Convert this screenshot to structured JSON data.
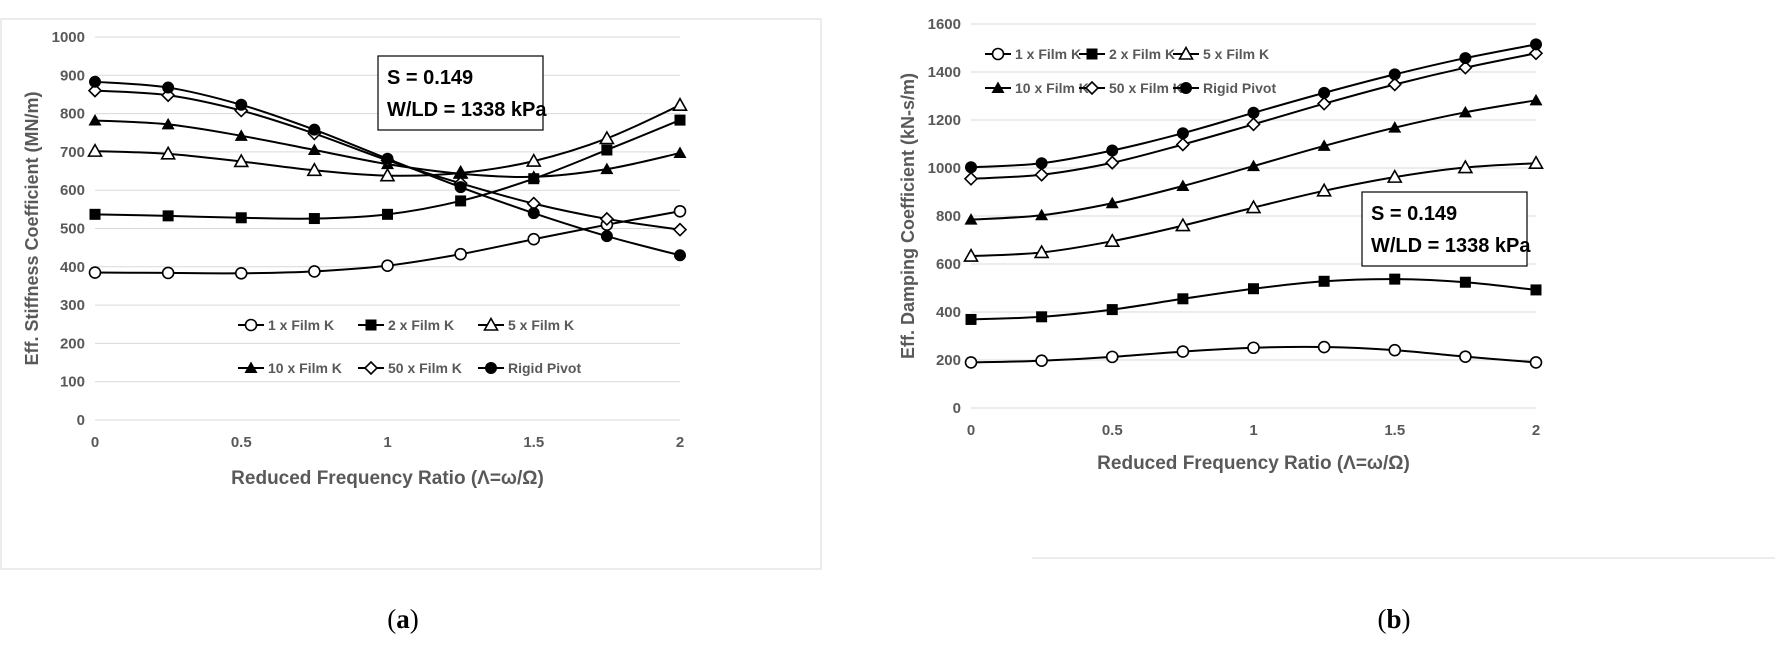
{
  "chart_data": [
    {
      "id": "a",
      "type": "line",
      "caption_letter": "a",
      "xlabel": "Reduced Frequency Ratio (Λ=ω/Ω)",
      "ylabel": "Eff. Stiffness Coefficient (MN/m)",
      "xlim": [
        0,
        2
      ],
      "ylim": [
        0,
        1000
      ],
      "xticks": [
        0,
        0.5,
        1,
        1.5,
        2
      ],
      "xtick_labels": [
        "0",
        "0.5",
        "1",
        "1.5",
        "2"
      ],
      "yticks": [
        0,
        100,
        200,
        300,
        400,
        500,
        600,
        700,
        800,
        900,
        1000
      ],
      "grid": "horizontal",
      "legend_position": "lower-center",
      "annotation_lines": [
        "S = 0.149",
        "W/LD = 1338 kPa"
      ],
      "x": [
        0,
        0.25,
        0.5,
        0.75,
        1,
        1.25,
        1.5,
        1.75,
        2
      ],
      "series": [
        {
          "name": "1 x Film K",
          "marker": "circle-open",
          "values": [
            385,
            384,
            383,
            388,
            403,
            433,
            472,
            510,
            545
          ]
        },
        {
          "name": "2 x Film K",
          "marker": "square-filled",
          "values": [
            537,
            533,
            528,
            526,
            537,
            572,
            630,
            705,
            783
          ]
        },
        {
          "name": "5 x Film K",
          "marker": "triangle-open",
          "values": [
            702,
            695,
            675,
            652,
            638,
            645,
            676,
            735,
            822
          ]
        },
        {
          "name": "10 x Film K",
          "marker": "triangle-filled",
          "values": [
            782,
            772,
            742,
            705,
            668,
            643,
            635,
            655,
            697
          ]
        },
        {
          "name": "50 x Film K",
          "marker": "diamond-open",
          "values": [
            860,
            848,
            808,
            748,
            678,
            618,
            565,
            525,
            497
          ]
        },
        {
          "name": "Rigid Pivot",
          "marker": "circle-filled",
          "values": [
            883,
            868,
            823,
            758,
            682,
            608,
            540,
            480,
            430
          ]
        }
      ]
    },
    {
      "id": "b",
      "type": "line",
      "caption_letter": "b",
      "xlabel": "Reduced Frequency Ratio (Λ=ω/Ω)",
      "ylabel": "Eff. Damping Coefficient (kN-s/m)",
      "xlim": [
        0,
        2
      ],
      "ylim": [
        0,
        1600
      ],
      "xticks": [
        0,
        0.5,
        1,
        1.5,
        2
      ],
      "xtick_labels": [
        "0",
        "0.5",
        "1",
        "1.5",
        "2"
      ],
      "yticks": [
        0,
        200,
        400,
        600,
        800,
        1000,
        1200,
        1400,
        1600
      ],
      "grid": "horizontal",
      "legend_position": "top-left",
      "annotation_lines": [
        "S = 0.149",
        "W/LD = 1338 kPa"
      ],
      "x": [
        0,
        0.25,
        0.5,
        0.75,
        1,
        1.25,
        1.5,
        1.75,
        2
      ],
      "series": [
        {
          "name": "1 x Film K",
          "marker": "circle-open",
          "values": [
            190,
            197,
            213,
            235,
            251,
            254,
            241,
            214,
            190
          ]
        },
        {
          "name": "2 x Film K",
          "marker": "square-filled",
          "values": [
            369,
            380,
            410,
            455,
            497,
            528,
            537,
            524,
            492
          ]
        },
        {
          "name": "5 x Film K",
          "marker": "triangle-open",
          "values": [
            633,
            648,
            695,
            760,
            835,
            905,
            962,
            1002,
            1020
          ]
        },
        {
          "name": "10 x Film K",
          "marker": "triangle-filled",
          "values": [
            785,
            803,
            853,
            925,
            1008,
            1092,
            1168,
            1232,
            1282
          ]
        },
        {
          "name": "50 x Film K",
          "marker": "diamond-open",
          "values": [
            955,
            972,
            1022,
            1098,
            1182,
            1268,
            1348,
            1418,
            1478
          ]
        },
        {
          "name": "Rigid Pivot",
          "marker": "circle-filled",
          "values": [
            1003,
            1020,
            1073,
            1145,
            1230,
            1313,
            1390,
            1458,
            1515
          ]
        }
      ]
    }
  ]
}
